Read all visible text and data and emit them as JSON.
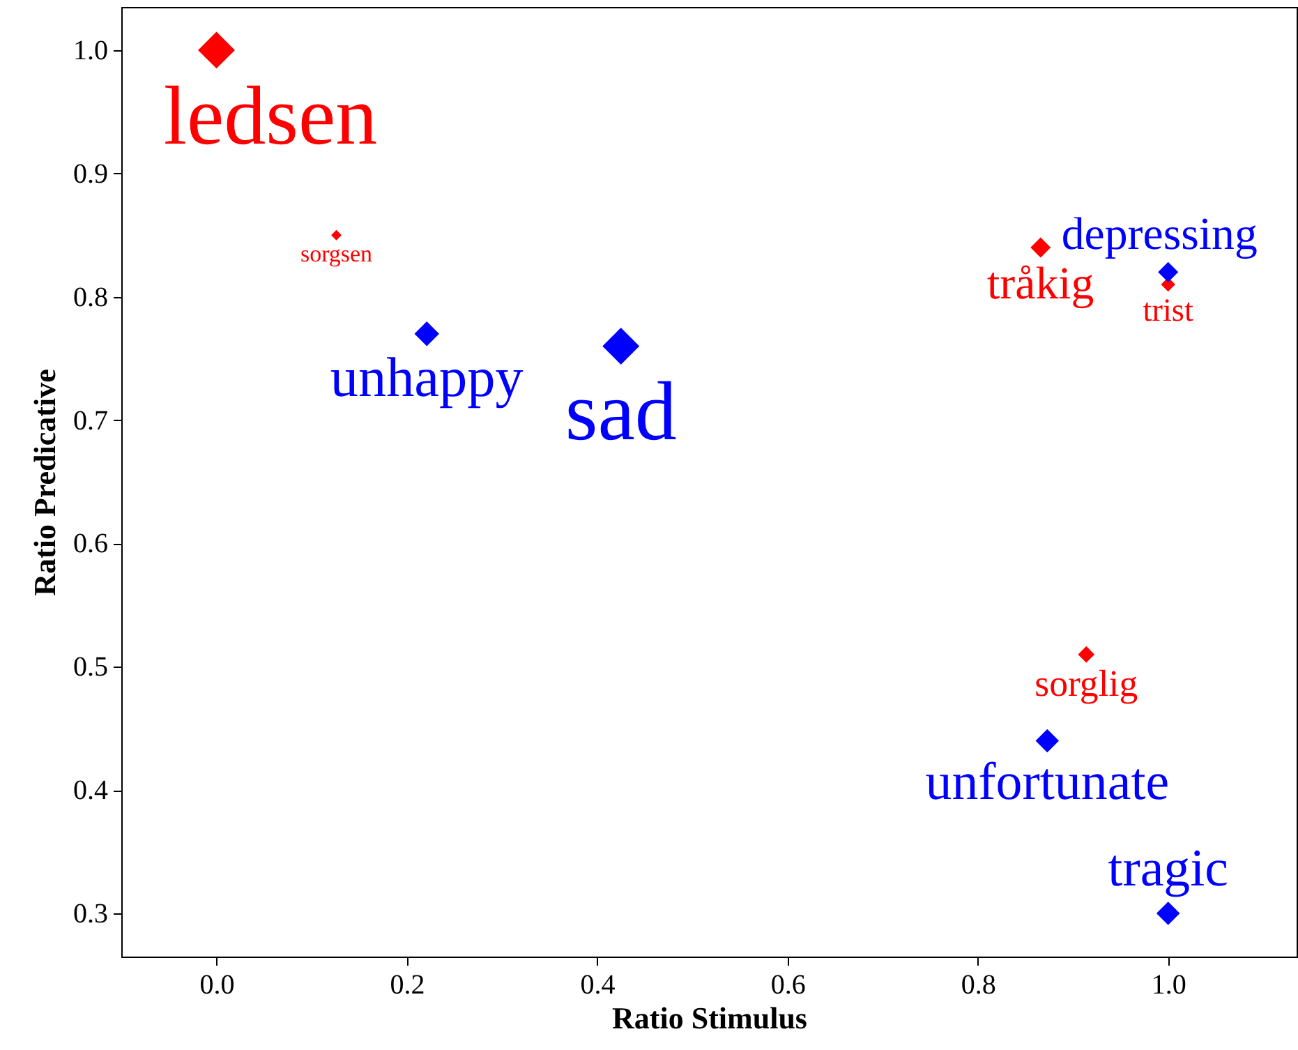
{
  "chart_data": {
    "type": "scatter",
    "xlabel": "Ratio Stimulus",
    "ylabel": "Ratio Predicative",
    "xlim": [
      -0.1,
      1.135
    ],
    "ylim": [
      0.265,
      1.035
    ],
    "xticks": [
      {
        "value": 0,
        "label": "0.0"
      },
      0.2,
      0.4,
      0.6,
      0.8,
      {
        "value": 1,
        "label": "1.0"
      }
    ],
    "yticks": [
      0.3,
      0.4,
      0.5,
      0.6,
      0.7,
      0.8,
      0.9,
      {
        "value": 1,
        "label": "1.0"
      }
    ],
    "grid": false,
    "marker": "diamond",
    "series": [
      {
        "color": "#ff0000",
        "x": [
          0,
          0.126,
          0.866,
          1.0,
          0.914
        ],
        "values": [
          1.0,
          0.85,
          0.84,
          0.81,
          0.51
        ],
        "sizes": [
          1,
          0.08,
          0.3,
          0.15,
          0.2
        ]
      },
      {
        "color": "#0000ff",
        "x": [
          0.221,
          0.425,
          1.0,
          0.873,
          1.0
        ],
        "values": [
          0.77,
          0.76,
          0.82,
          0.44,
          0.3
        ],
        "sizes": [
          0.45,
          1,
          0.3,
          0.4,
          0.4
        ]
      }
    ],
    "annotations": [
      "ledsen",
      "sorgsen",
      "tråkig",
      "trist",
      "sorglig",
      "unhappy",
      "sad",
      "depressing",
      "unfortunate",
      "tragic"
    ]
  }
}
